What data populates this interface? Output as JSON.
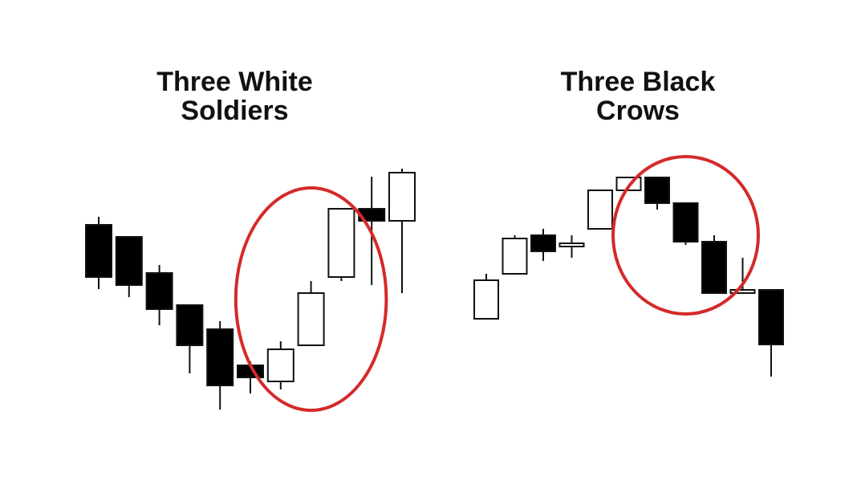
{
  "panels": {
    "left": {
      "title_line1": "Three White",
      "title_line2": "Soldiers"
    },
    "right": {
      "title_line1": "Three Black",
      "title_line2": "Crows"
    }
  },
  "colors": {
    "bullish_body": "#ffffff",
    "bearish_body": "#000000",
    "outline": "#111111",
    "highlight_ellipse": "#d42a2a"
  },
  "chart_data": [
    {
      "type": "candlestick",
      "pattern": "Three White Soldiers",
      "candles": [
        {
          "open": 60,
          "close": 47,
          "high": 62,
          "low": 44
        },
        {
          "open": 57,
          "close": 45,
          "high": 57,
          "low": 42
        },
        {
          "open": 48,
          "close": 39,
          "high": 50,
          "low": 35
        },
        {
          "open": 40,
          "close": 30,
          "high": 40,
          "low": 23
        },
        {
          "open": 34,
          "close": 20,
          "high": 36,
          "low": 14
        },
        {
          "open": 25,
          "close": 22,
          "high": 26,
          "low": 18
        },
        {
          "open": 21,
          "close": 29,
          "high": 31,
          "low": 19
        },
        {
          "open": 30,
          "close": 43,
          "high": 46,
          "low": 30
        },
        {
          "open": 47,
          "close": 64,
          "high": 64,
          "low": 46
        },
        {
          "open": 64,
          "close": 61,
          "high": 72,
          "low": 45
        },
        {
          "open": 61,
          "close": 73,
          "high": 74,
          "low": 43
        }
      ],
      "highlight": {
        "from_index": 6,
        "to_index": 8
      }
    },
    {
      "type": "candlestick",
      "pattern": "Three Black Crows",
      "candles": [
        {
          "open": 52,
          "close": 64,
          "high": 66,
          "low": 52
        },
        {
          "open": 66,
          "close": 77,
          "high": 78,
          "low": 66
        },
        {
          "open": 78,
          "close": 73,
          "high": 80,
          "low": 70
        },
        {
          "open": 74.5,
          "close": 75.5,
          "high": 78,
          "low": 71
        },
        {
          "open": 80,
          "close": 92,
          "high": 92,
          "low": 80
        },
        {
          "open": 92,
          "close": 96,
          "high": 96,
          "low": 92
        },
        {
          "open": 96,
          "close": 88,
          "high": 96,
          "low": 86
        },
        {
          "open": 88,
          "close": 76,
          "high": 88,
          "low": 75
        },
        {
          "open": 76,
          "close": 60,
          "high": 78,
          "low": 60
        },
        {
          "open": 60,
          "close": 61,
          "high": 71,
          "low": 60
        },
        {
          "open": 61,
          "close": 44,
          "high": 61,
          "low": 34
        }
      ],
      "highlight": {
        "from_index": 6,
        "to_index": 8
      }
    }
  ]
}
